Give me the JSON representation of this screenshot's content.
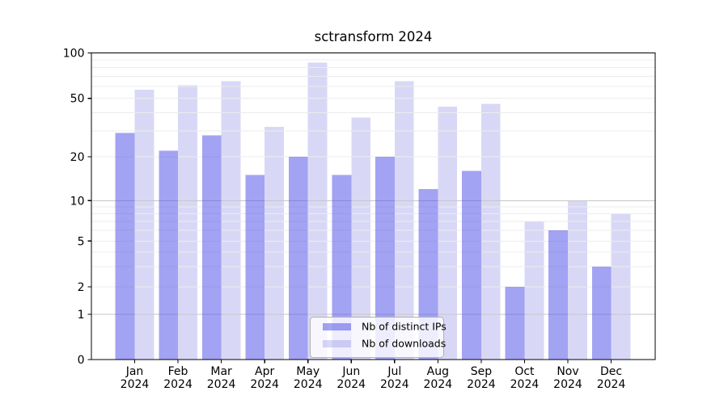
{
  "title": "sctransform 2024",
  "colors": {
    "bar_distinct_ips": "#a3a3f0",
    "bar_downloads": "#d8d8f8",
    "grid_minor": "#ececec",
    "grid_major": "#c6c6c6",
    "axis": "#000000",
    "text": "#000000",
    "legend_border": "#b0b0b0"
  },
  "x_axis": {
    "year": "2024",
    "months": [
      "Jan",
      "Feb",
      "Mar",
      "Apr",
      "May",
      "Jun",
      "Jul",
      "Aug",
      "Sep",
      "Oct",
      "Nov",
      "Dec"
    ]
  },
  "y_axis": {
    "tick_labels": [
      "100",
      "50",
      "20",
      "10",
      "5",
      "2",
      "1",
      "0"
    ]
  },
  "legend": {
    "entries": [
      "Nb of distinct IPs",
      "Nb of downloads"
    ]
  },
  "chart_data": {
    "type": "bar",
    "title": "sctransform 2024",
    "categories": [
      "Jan 2024",
      "Feb 2024",
      "Mar 2024",
      "Apr 2024",
      "May 2024",
      "Jun 2024",
      "Jul 2024",
      "Aug 2024",
      "Sep 2024",
      "Oct 2024",
      "Nov 2024",
      "Dec 2024"
    ],
    "series": [
      {
        "name": "Nb of distinct IPs",
        "color": "#a3a3f0",
        "values": [
          29,
          22,
          28,
          15,
          20,
          15,
          20,
          12,
          16,
          2,
          6,
          3
        ]
      },
      {
        "name": "Nb of downloads",
        "color": "#d8d8f8",
        "values": [
          57,
          61,
          65,
          32,
          86,
          37,
          65,
          44,
          46,
          7,
          10,
          8
        ]
      }
    ],
    "yscale": "log",
    "ylim": [
      0,
      100
    ],
    "y_ticks": [
      0,
      1,
      2,
      5,
      10,
      20,
      50,
      100
    ],
    "grid": true,
    "legend_position": "lower center"
  }
}
